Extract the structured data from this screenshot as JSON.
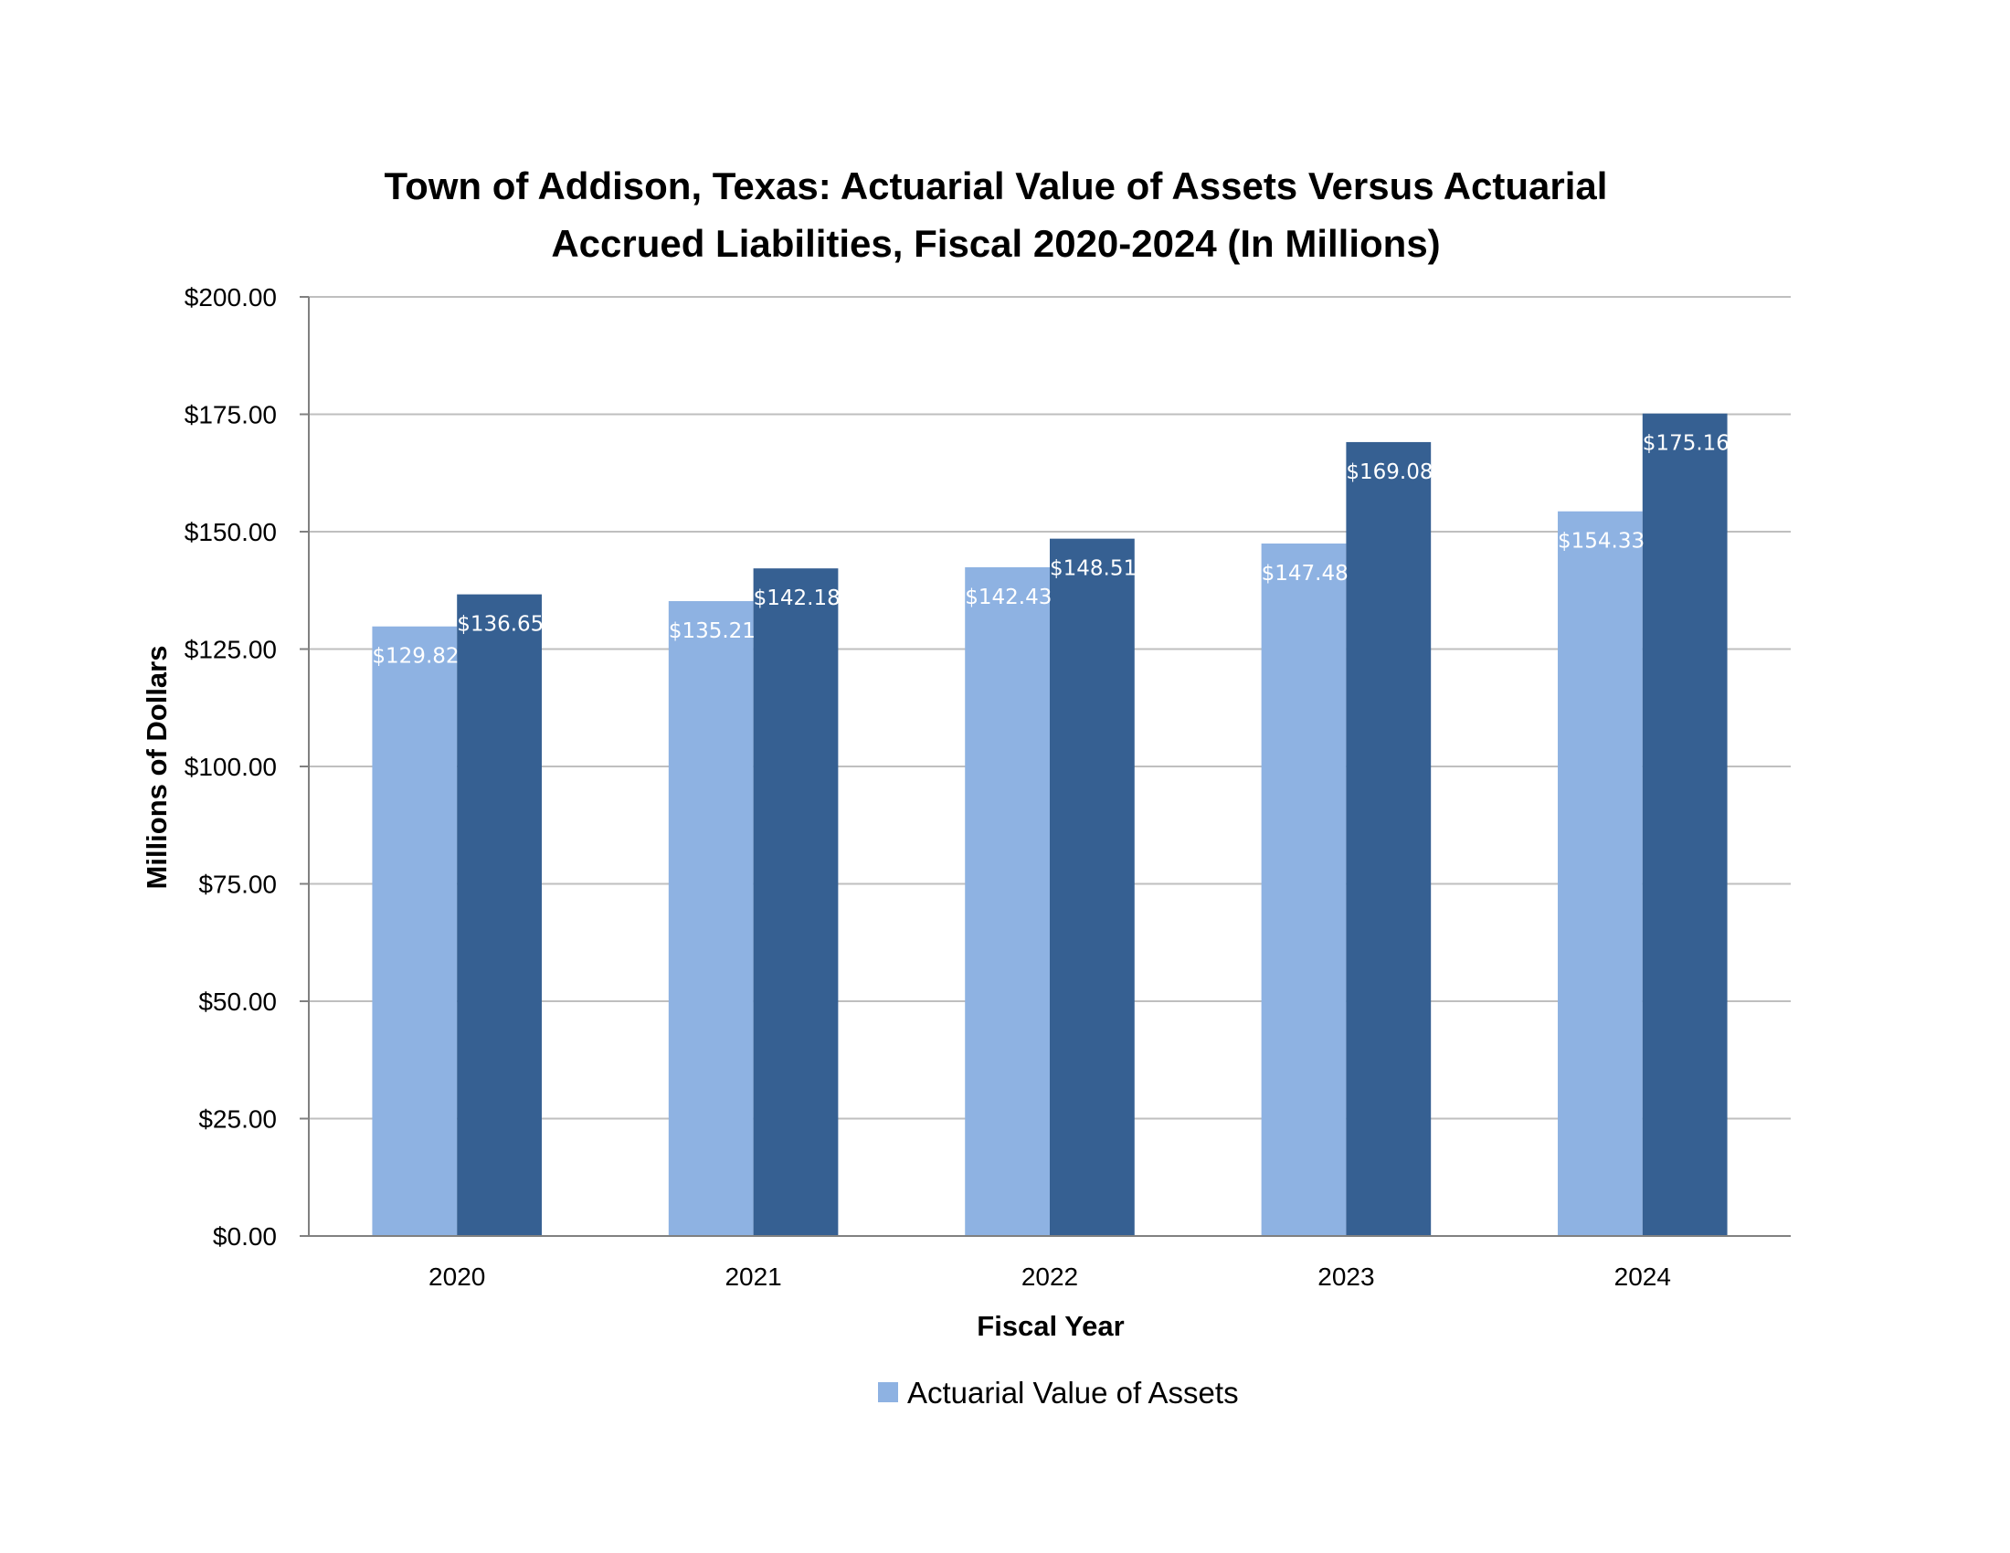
{
  "chart_data": {
    "type": "bar",
    "title": [
      "Town of Addison, Texas: Actuarial Value of Assets Versus Actuarial",
      "Accrued Liabilities, Fiscal 2020-2024 (In Millions)"
    ],
    "xlabel": "Fiscal Year",
    "ylabel": "Millions of Dollars",
    "categories": [
      "2020",
      "2021",
      "2022",
      "2023",
      "2024"
    ],
    "ylim": [
      0,
      200
    ],
    "ytick_step": 25,
    "ytick_labels": [
      "$0.00",
      "$25.00",
      "$50.00",
      "$75.00",
      "$100.00",
      "$125.00",
      "$150.00",
      "$175.00",
      "$200.00"
    ],
    "grid": true,
    "legend_position": "bottom",
    "series": [
      {
        "name": "Actuarial Value of Assets",
        "color": "#8EB2E2",
        "values": [
          129.82,
          135.21,
          142.43,
          147.48,
          154.33
        ],
        "labels": [
          "$129.82",
          "$135.21",
          "$142.43",
          "$147.48",
          "$154.33"
        ],
        "in_legend": true
      },
      {
        "color": "#366092",
        "values": [
          136.65,
          142.18,
          148.51,
          169.08,
          175.16
        ],
        "labels": [
          "$136.65",
          "$142.18",
          "$148.51",
          "$169.08",
          "$175.16"
        ],
        "in_legend": false
      }
    ]
  },
  "colors": {
    "gridline": "#BFBFBF",
    "axis": "#808080"
  }
}
